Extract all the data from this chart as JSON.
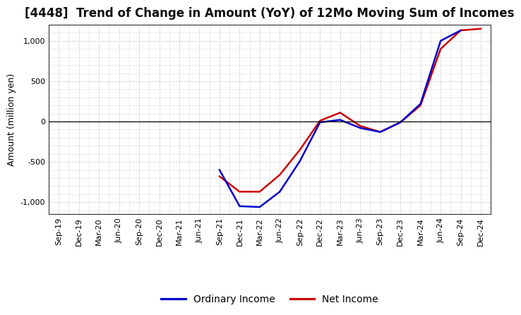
{
  "title": "[4448]  Trend of Change in Amount (YoY) of 12Mo Moving Sum of Incomes",
  "ylabel": "Amount (million yen)",
  "x_labels": [
    "Sep-19",
    "Dec-19",
    "Mar-20",
    "Jun-20",
    "Sep-20",
    "Dec-20",
    "Mar-21",
    "Jun-21",
    "Sep-21",
    "Dec-21",
    "Mar-22",
    "Jun-22",
    "Sep-22",
    "Dec-22",
    "Mar-23",
    "Jun-23",
    "Sep-23",
    "Dec-23",
    "Mar-24",
    "Jun-24",
    "Sep-24",
    "Dec-24"
  ],
  "ordinary_income": [
    null,
    null,
    null,
    null,
    null,
    null,
    null,
    null,
    -600,
    -1050,
    -1060,
    -870,
    -490,
    -10,
    20,
    -80,
    -130,
    -10,
    220,
    1000,
    1130,
    null
  ],
  "net_income": [
    null,
    null,
    null,
    null,
    null,
    null,
    null,
    null,
    -680,
    -870,
    -870,
    -660,
    -350,
    10,
    110,
    -55,
    -130,
    -10,
    200,
    900,
    1130,
    1150
  ],
  "ordinary_color": "#0000cc",
  "net_color": "#cc0000",
  "ylim": [
    -1150,
    1200
  ],
  "yticks": [
    -1000,
    -500,
    0,
    500,
    1000
  ],
  "background_color": "#ffffff",
  "grid_color": "#bbbbbb",
  "line_width": 1.8,
  "title_fontsize": 12,
  "legend_fontsize": 10,
  "axis_label_fontsize": 9,
  "tick_fontsize": 8
}
